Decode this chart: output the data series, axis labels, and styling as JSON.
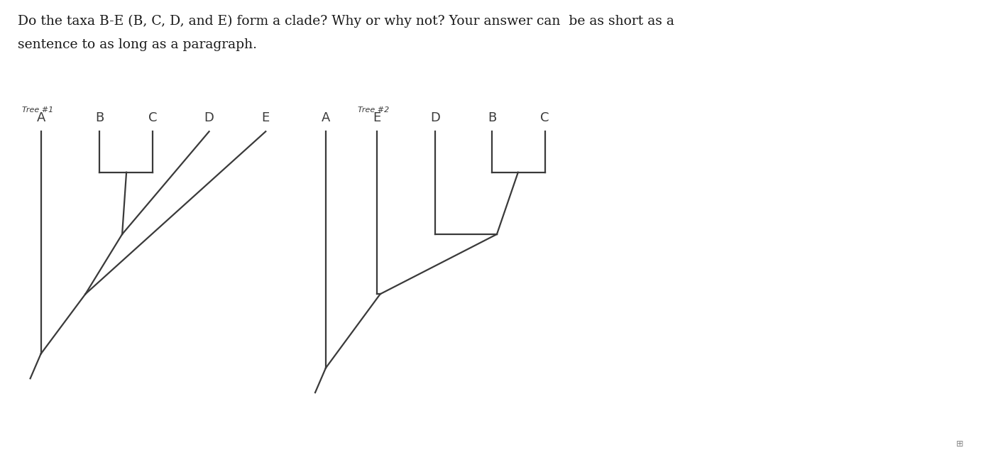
{
  "bg_color": "#f0efeb",
  "line_color": "#3a3a3a",
  "line_width": 1.6,
  "title_line1": "Do the taxa B-E (B, C, D, and E) form a clade? Why or why not? Your answer can  be as short as a",
  "title_line2": "sentence to as long as a paragraph.",
  "title_fontsize": 13.5,
  "title_color": "#1a1a1a",
  "label_fontsize": 13,
  "tree_label_fontsize": 8,
  "tree1_label": "Tree #1",
  "tree2_label": "Tree #2",
  "tree1_taxa": [
    "A",
    "B",
    "C",
    "D",
    "E"
  ],
  "tree2_taxa": [
    "A",
    "E",
    "D",
    "B",
    "C"
  ],
  "white_bg": "#ffffff"
}
